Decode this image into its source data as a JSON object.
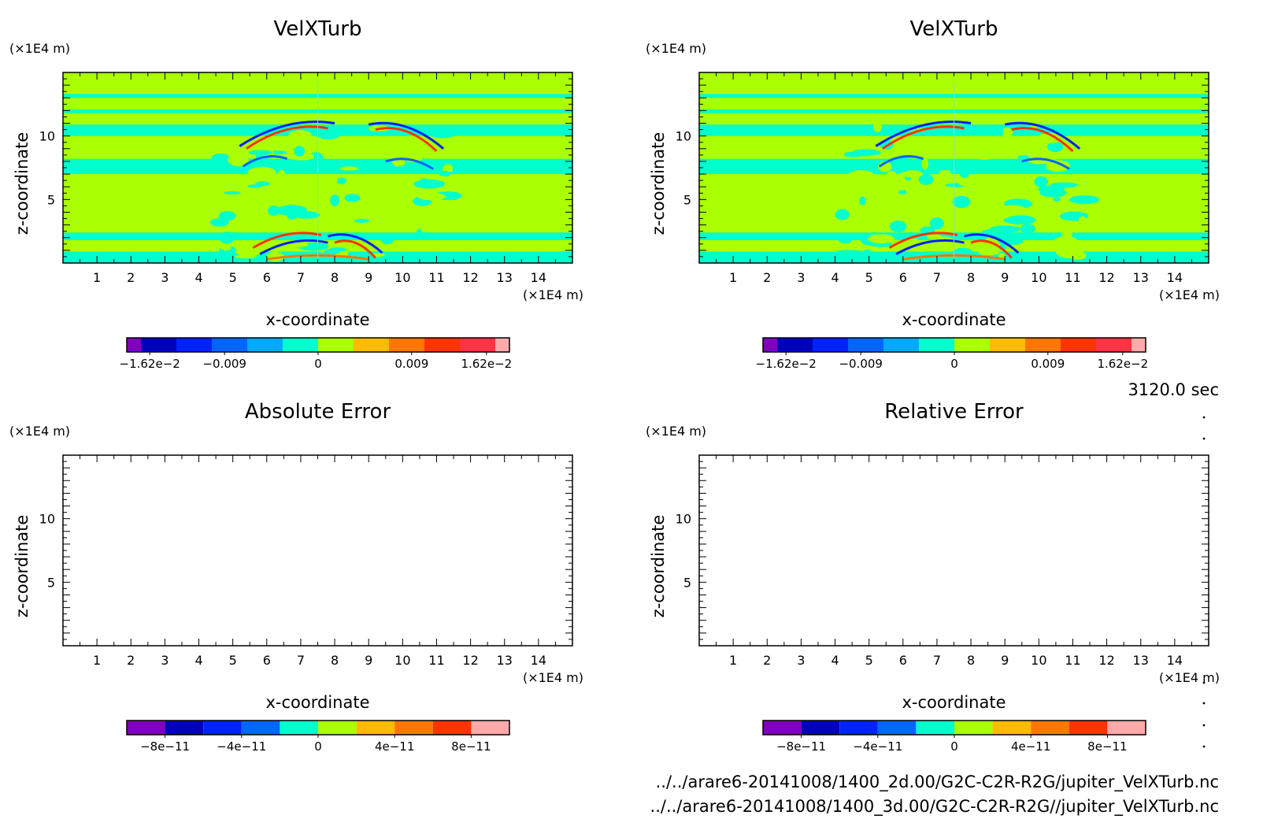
{
  "time_label": "3120.0 sec",
  "footer": {
    "file1": "../../arare6-20141008/1400_2d.00/G2C-C2R-R2G/jupiter_VelXTurb.nc",
    "file2": "../../arare6-20141008/1400_3d.00/G2C-C2R-R2G//jupiter_VelXTurb.nc"
  },
  "colors": {
    "field_background": "#aaff00",
    "field_low": "#00ffcc",
    "shades": [
      "#7f00bf",
      "#0000bf",
      "#0022ff",
      "#0066ff",
      "#00aaff",
      "#00ffcc",
      "#aaff00",
      "#ffbb00",
      "#ff7700",
      "#ff3300",
      "#ff3344",
      "#ffaaaa"
    ]
  },
  "chart_data": [
    {
      "type": "heatmap",
      "title": "VelXTurb",
      "xlabel": "x-coordinate",
      "ylabel": "z-coordinate",
      "x_unit": "(×1E4 m)",
      "y_unit": "(×1E4 m)",
      "xlim": [
        0,
        15
      ],
      "ylim": [
        0,
        15
      ],
      "x_ticks": [
        "1",
        "2",
        "3",
        "4",
        "5",
        "6",
        "7",
        "8",
        "9",
        "10",
        "11",
        "12",
        "13",
        "14"
      ],
      "y_ticks": [
        "5",
        "10"
      ],
      "colorbar": {
        "range": [
          -0.0162,
          0.0162
        ],
        "tick_labels": [
          "-1.62e-2",
          "-0.009",
          "0",
          "0.009",
          "1.62e-2"
        ]
      }
    },
    {
      "type": "heatmap",
      "title": "VelXTurb",
      "xlabel": "x-coordinate",
      "ylabel": "z-coordinate",
      "x_unit": "(×1E4 m)",
      "y_unit": "(×1E4 m)",
      "xlim": [
        0,
        15
      ],
      "ylim": [
        0,
        15
      ],
      "x_ticks": [
        "1",
        "2",
        "3",
        "4",
        "5",
        "6",
        "7",
        "8",
        "9",
        "10",
        "11",
        "12",
        "13",
        "14"
      ],
      "y_ticks": [
        "5",
        "10"
      ],
      "colorbar": {
        "range": [
          -0.0162,
          0.0162
        ],
        "tick_labels": [
          "-1.62e-2",
          "-0.009",
          "0",
          "0.009",
          "1.62e-2"
        ]
      }
    },
    {
      "type": "heatmap",
      "title": "Absolute Error",
      "xlabel": "x-coordinate",
      "ylabel": "z-coordinate",
      "x_unit": "(×1E4 m)",
      "y_unit": "(×1E4 m)",
      "xlim": [
        0,
        15
      ],
      "ylim": [
        0,
        15
      ],
      "x_ticks": [
        "1",
        "2",
        "3",
        "4",
        "5",
        "6",
        "7",
        "8",
        "9",
        "10",
        "11",
        "12",
        "13",
        "14"
      ],
      "y_ticks": [
        "5",
        "10"
      ],
      "colorbar": {
        "range": [
          -1e-10,
          1e-10
        ],
        "tick_labels": [
          "-8e-11",
          "-4e-11",
          "0",
          "4e-11",
          "8e-11"
        ]
      }
    },
    {
      "type": "heatmap",
      "title": "Relative Error",
      "xlabel": "x-coordinate",
      "ylabel": "z-coordinate",
      "x_unit": "(×1E4 m)",
      "y_unit": "(×1E4 m)",
      "xlim": [
        0,
        15
      ],
      "ylim": [
        0,
        15
      ],
      "x_ticks": [
        "1",
        "2",
        "3",
        "4",
        "5",
        "6",
        "7",
        "8",
        "9",
        "10",
        "11",
        "12",
        "13",
        "14"
      ],
      "y_ticks": [
        "5",
        "10"
      ],
      "colorbar": {
        "range": [
          -1e-10,
          1e-10
        ],
        "tick_labels": [
          "-8e-11",
          "-4e-11",
          "0",
          "4e-11",
          "8e-11"
        ]
      }
    }
  ]
}
